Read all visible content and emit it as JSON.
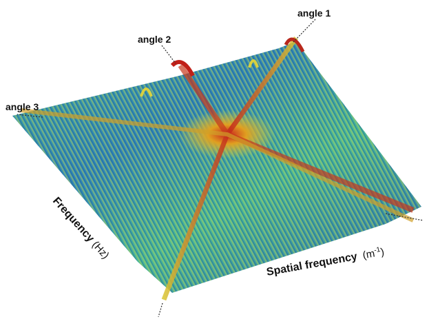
{
  "labels": {
    "angle_1": "angle 1",
    "angle_2": "angle 2",
    "angle_3": "angle 3"
  },
  "axes": {
    "frequency": {
      "name": "Frequency",
      "unit": "(Hz)"
    },
    "spatial_frequency": {
      "name": "Spatial frequency",
      "unit_open": "(m",
      "unit_exp": "-1",
      "unit_close": ")"
    }
  }
}
